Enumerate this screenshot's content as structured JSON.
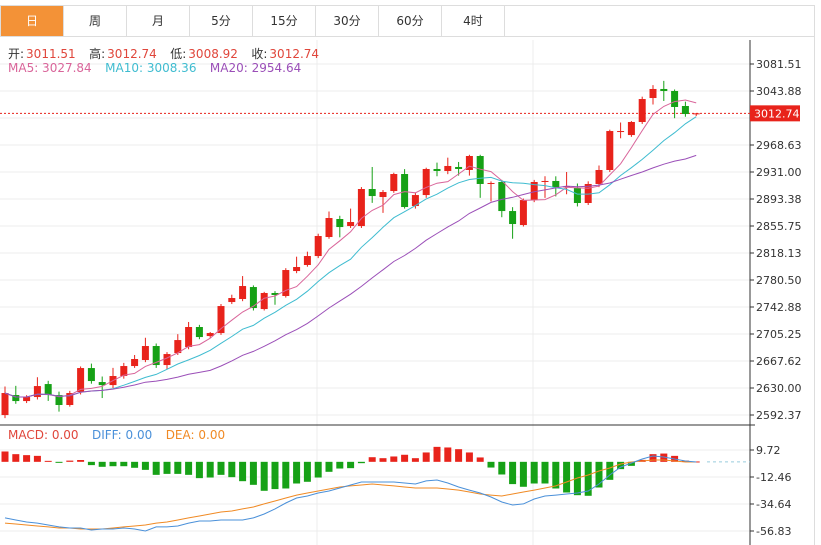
{
  "tabs": [
    {
      "label": "日",
      "active": true
    },
    {
      "label": "周",
      "active": false
    },
    {
      "label": "月",
      "active": false
    },
    {
      "label": "5分",
      "active": false
    },
    {
      "label": "15分",
      "active": false
    },
    {
      "label": "30分",
      "active": false
    },
    {
      "label": "60分",
      "active": false
    },
    {
      "label": "4时",
      "active": false
    }
  ],
  "ohlc_info": {
    "open_label": "开:",
    "open": "3011.51",
    "high_label": "高:",
    "high": "3012.74",
    "low_label": "低:",
    "low": "3008.92",
    "close_label": "收:",
    "close": "3012.74"
  },
  "ma_info": {
    "ma5": "MA5: 3027.84",
    "ma10": "MA10: 3008.36",
    "ma20": "MA20: 2954.64"
  },
  "macd_info": {
    "macd": "MACD: 0.00",
    "diff": "DIFF: 0.00",
    "dea": "DEA: 0.00"
  },
  "colors": {
    "accent": "#f39237",
    "up": "#e8231b",
    "down": "#16a116",
    "ma5": "#d9659a",
    "ma10": "#3fbcd0",
    "ma20": "#9b4fb8",
    "diff": "#4a90d9",
    "dea": "#f08a24"
  },
  "chart_data": [
    {
      "type": "candlestick",
      "price_axis_ticks": [
        "3081.51",
        "3043.88",
        "2968.63",
        "2931.00",
        "2893.38",
        "2855.75",
        "2818.13",
        "2780.50",
        "2742.88",
        "2705.25",
        "2667.62",
        "2630.00",
        "2592.37"
      ],
      "ylim": [
        2592.37,
        3081.51
      ],
      "current_price": "3012.74",
      "grid": true,
      "ohlc": [
        [
          2592.3,
          2632,
          2588,
          2623.0
        ],
        [
          2620.2,
          2633,
          2608,
          2611.8
        ],
        [
          2611.8,
          2620,
          2609,
          2617.4
        ],
        [
          2617.4,
          2645,
          2614,
          2632.7
        ],
        [
          2635.5,
          2640,
          2612,
          2620.2
        ],
        [
          2620.2,
          2625,
          2597,
          2606.3
        ],
        [
          2606.3,
          2626,
          2604,
          2623.0
        ],
        [
          2624.4,
          2660,
          2621,
          2657.8
        ],
        [
          2657.8,
          2664,
          2636,
          2639.7
        ],
        [
          2638.3,
          2646,
          2616,
          2634.1
        ],
        [
          2634.1,
          2658,
          2630,
          2646.7
        ],
        [
          2646.7,
          2665,
          2643,
          2660.6
        ],
        [
          2660.6,
          2676,
          2658,
          2670.4
        ],
        [
          2669.0,
          2700,
          2666,
          2688.5
        ],
        [
          2688.5,
          2692,
          2658,
          2662.0
        ],
        [
          2662.0,
          2680,
          2656,
          2677.3
        ],
        [
          2678.7,
          2705,
          2676,
          2696.8
        ],
        [
          2687.1,
          2722,
          2684,
          2715.0
        ],
        [
          2715.0,
          2718,
          2698,
          2701.0
        ],
        [
          2702.4,
          2708,
          2700,
          2706.6
        ],
        [
          2706.6,
          2747,
          2704,
          2744.2
        ],
        [
          2749.8,
          2760,
          2747,
          2755.4
        ],
        [
          2754.0,
          2786,
          2751,
          2772.1
        ],
        [
          2770.7,
          2773,
          2738,
          2741.4
        ],
        [
          2740.0,
          2764,
          2738,
          2762.4
        ],
        [
          2762.4,
          2765,
          2746,
          2759.6
        ],
        [
          2758.2,
          2797,
          2756,
          2794.4
        ],
        [
          2793.0,
          2813,
          2790,
          2798.6
        ],
        [
          2801.4,
          2820,
          2799,
          2813.9
        ],
        [
          2813.9,
          2845,
          2811,
          2841.8
        ],
        [
          2840.4,
          2876,
          2838,
          2866.9
        ],
        [
          2865.5,
          2870,
          2840,
          2854.3
        ],
        [
          2855.7,
          2880,
          2853,
          2861.3
        ],
        [
          2855.7,
          2910,
          2853,
          2907.3
        ],
        [
          2907.3,
          2938,
          2888,
          2897.5
        ],
        [
          2896.1,
          2906,
          2874,
          2903.1
        ],
        [
          2904.5,
          2930,
          2902,
          2928.2
        ],
        [
          2928.2,
          2935,
          2880,
          2882.2
        ],
        [
          2883.6,
          2902,
          2880,
          2898.9
        ],
        [
          2898.9,
          2937,
          2895,
          2935.2
        ],
        [
          2935.2,
          2944,
          2925,
          2932.4
        ],
        [
          2932.4,
          2951,
          2928,
          2939.4
        ],
        [
          2938.0,
          2945,
          2926,
          2935.2
        ],
        [
          2933.8,
          2955,
          2926,
          2953.3
        ],
        [
          2953.3,
          2955,
          2895,
          2914.3
        ],
        [
          2914.3,
          2918,
          2890,
          2915.7
        ],
        [
          2917.1,
          2920,
          2868,
          2876.6
        ],
        [
          2876.6,
          2882,
          2838,
          2858.5
        ],
        [
          2857.1,
          2894,
          2855,
          2891.9
        ],
        [
          2891.9,
          2920,
          2889,
          2917.1
        ],
        [
          2917.1,
          2925,
          2895,
          2918.5
        ],
        [
          2918.5,
          2925,
          2897,
          2910.1
        ],
        [
          2910.1,
          2931,
          2900,
          2911.0
        ],
        [
          2908.7,
          2915,
          2883,
          2887.8
        ],
        [
          2887.8,
          2918,
          2885,
          2914.3
        ],
        [
          2914.3,
          2940,
          2910,
          2933.8
        ],
        [
          2933.8,
          2990,
          2931,
          2988.1
        ],
        [
          2986.7,
          3000,
          2978,
          2988.1
        ],
        [
          2982.5,
          3002,
          2980,
          3000.7
        ],
        [
          3000.7,
          3036,
          2998,
          3032.7
        ],
        [
          3034.1,
          3052,
          3025,
          3046.7
        ],
        [
          3046.7,
          3058,
          3030,
          3043.9
        ],
        [
          3043.9,
          3046,
          3006,
          3021.6
        ],
        [
          3023.0,
          3029,
          3008,
          3011.8
        ],
        [
          3011.51,
          3012.74,
          3008.92,
          3012.74
        ]
      ],
      "moving_averages": [
        {
          "name": "MA5",
          "period": 5
        },
        {
          "name": "MA10",
          "period": 10
        },
        {
          "name": "MA20",
          "period": 20
        }
      ]
    },
    {
      "type": "macd",
      "axis_ticks": [
        "9.72",
        "-12.46",
        "-34.64",
        "-56.83"
      ],
      "ylim": [
        -56.83,
        9.72
      ],
      "histogram": [
        8.5,
        6.3,
        5.5,
        4.9,
        0.8,
        -0.5,
        1,
        1.5,
        -2.7,
        -4.1,
        -3.6,
        -3.6,
        -4.9,
        -6.6,
        -10.7,
        -9.9,
        -9.9,
        -10.7,
        -13.4,
        -12.9,
        -10.7,
        -12.6,
        -15.9,
        -18.9,
        -23.8,
        -22.4,
        -21.9,
        -17.8,
        -16.4,
        -12.9,
        -8.2,
        -5.5,
        -5.2,
        -1.1,
        3.8,
        3,
        4.4,
        5.8,
        3,
        7.7,
        12.3,
        11.8,
        10.4,
        7.7,
        3.6,
        -4.7,
        -10.4,
        -18.3,
        -20.5,
        -17.8,
        -17.8,
        -21.9,
        -25.2,
        -27.4,
        -27.9,
        -21.1,
        -14.8,
        -6.0,
        -3.3,
        1.6,
        6.3,
        6.8,
        4.9,
        1,
        0.3
      ],
      "diff": [
        -46.1,
        -47.8,
        -49.4,
        -50.3,
        -51.9,
        -53.5,
        -54.4,
        -54.4,
        -56.0,
        -55.2,
        -55.2,
        -54.4,
        -55.2,
        -56.8,
        -53.5,
        -53.5,
        -52.7,
        -50.3,
        -48.6,
        -48.6,
        -47.8,
        -47.8,
        -47.8,
        -46.1,
        -42.9,
        -38.7,
        -33.8,
        -29.7,
        -28.1,
        -25.6,
        -24.0,
        -21.5,
        -19.0,
        -16.6,
        -16.6,
        -16.6,
        -16.6,
        -17.4,
        -18.2,
        -15.7,
        -14.9,
        -17.4,
        -20.7,
        -23.2,
        -25.6,
        -28.9,
        -33.0,
        -35.5,
        -34.6,
        -30.5,
        -28.1,
        -27.3,
        -26.4,
        -25.6,
        -24.0,
        -18.2,
        -10.8,
        -4.3,
        -1.0,
        2.3,
        4.8,
        4.0,
        2.3,
        0.7,
        -0.1
      ],
      "dea": [
        -50.3,
        -51.1,
        -51.9,
        -52.7,
        -53.5,
        -54.4,
        -54.4,
        -55.2,
        -55.2,
        -55.2,
        -54.4,
        -53.5,
        -52.7,
        -51.9,
        -50.3,
        -49.4,
        -47.8,
        -46.1,
        -44.5,
        -42.9,
        -41.2,
        -40.4,
        -38.7,
        -37.1,
        -34.6,
        -32.2,
        -29.7,
        -27.3,
        -25.6,
        -24.0,
        -22.3,
        -20.7,
        -19.8,
        -19.0,
        -18.2,
        -19.0,
        -19.8,
        -20.7,
        -21.5,
        -21.5,
        -21.5,
        -22.3,
        -23.2,
        -24.8,
        -26.4,
        -27.3,
        -28.1,
        -26.4,
        -24.8,
        -23.2,
        -21.5,
        -19.8,
        -16.6,
        -13.3,
        -10.8,
        -7.5,
        -5.1,
        -1.8,
        -0.1,
        0.7,
        1.5,
        1.5,
        0.7,
        -0.1,
        -0.1
      ]
    }
  ]
}
